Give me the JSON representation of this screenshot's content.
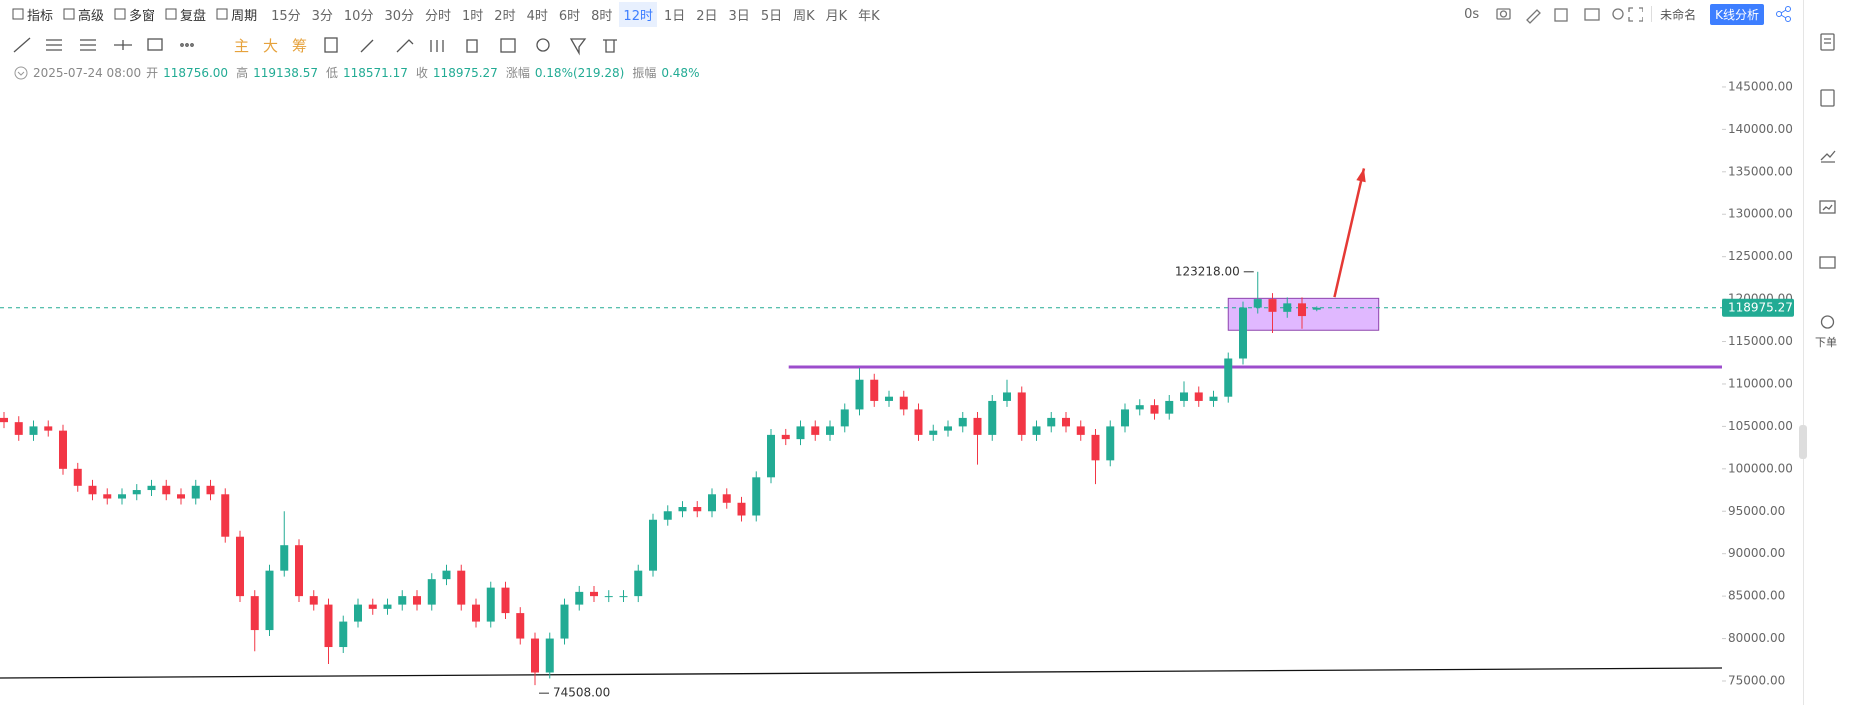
{
  "toolbar": {
    "left": [
      "指标",
      "高级",
      "多窗",
      "复盘",
      "周期"
    ],
    "periods": [
      "15分",
      "3分",
      "10分",
      "30分",
      "分时",
      "1时",
      "2时",
      "4时",
      "6时",
      "8时",
      "12时",
      "1日",
      "2日",
      "3日",
      "5日",
      "周K",
      "月K",
      "年K"
    ],
    "active_period": "12时",
    "timer": "0s",
    "layout_name": "未命名",
    "analysis": "K线分析"
  },
  "drawing_tools": [
    "主",
    "大",
    "筹"
  ],
  "info": {
    "date": "2025-07-24 08:00",
    "items": [
      {
        "label": "开",
        "value": "118756.00"
      },
      {
        "label": "高",
        "value": "119138.57"
      },
      {
        "label": "低",
        "value": "118571.17"
      },
      {
        "label": "收",
        "value": "118975.27"
      },
      {
        "label": "涨幅",
        "value": "0.18%(219.28)"
      },
      {
        "label": "振幅",
        "value": "0.48%"
      }
    ]
  },
  "sidebar": {
    "order": "下单"
  },
  "chart_data": {
    "type": "candlestick",
    "up_color": "#22ab94",
    "down_color": "#f23645",
    "ylim": [
      72170,
      149000
    ],
    "yticks": [
      {
        "value": 75000,
        "label": "75000.00"
      },
      {
        "value": 80000,
        "label": "80000.00"
      },
      {
        "value": 85000,
        "label": "85000.00"
      },
      {
        "value": 90000,
        "label": "90000.00"
      },
      {
        "value": 95000,
        "label": "95000.00"
      },
      {
        "value": 100000,
        "label": "100000.00"
      },
      {
        "value": 105000,
        "label": "105000.00"
      },
      {
        "value": 110000,
        "label": "110000.00"
      },
      {
        "value": 115000,
        "label": "115000.00"
      },
      {
        "value": 120000,
        "label": "120000.00"
      },
      {
        "value": 125000,
        "label": "125000.00"
      },
      {
        "value": 130000,
        "label": "130000.00"
      },
      {
        "value": 135000,
        "label": "135000.00"
      },
      {
        "value": 140000,
        "label": "140000.00"
      },
      {
        "value": 145000,
        "label": "145000.00"
      }
    ],
    "series": {
      "open": [
        106000,
        105500,
        104000,
        105000,
        104500,
        100000,
        98000,
        97000,
        96500,
        97000,
        97500,
        98000,
        97000,
        96500,
        98000,
        97000,
        92000,
        85000,
        81000,
        88000,
        91000,
        85000,
        84000,
        79000,
        82000,
        84000,
        83500,
        84000,
        85000,
        84000,
        87000,
        88000,
        84000,
        82000,
        86000,
        83000,
        80000,
        76000,
        80000,
        84000,
        85500,
        85000,
        85000,
        85000,
        88000,
        94000,
        95000,
        95500,
        95000,
        97000,
        96000,
        94500,
        99000,
        104000,
        103500,
        105000,
        104000,
        105000,
        107000,
        110500,
        108000,
        108500,
        107000,
        104000,
        104500,
        105000,
        106000,
        104000,
        108000,
        109000,
        104000,
        105000,
        106000,
        105000,
        104000,
        101000,
        105000,
        107000,
        107500,
        106500,
        108000,
        109000,
        108000,
        108500,
        113000,
        119000,
        120000,
        118500,
        119500,
        118756
      ],
      "high": [
        106700,
        106200,
        105700,
        105700,
        105200,
        100700,
        98700,
        97700,
        97700,
        98200,
        98700,
        98700,
        97700,
        98700,
        98700,
        97700,
        92700,
        85700,
        88700,
        95000,
        91700,
        85700,
        84700,
        82700,
        84700,
        84700,
        84700,
        85700,
        85700,
        87700,
        88700,
        88700,
        84700,
        86700,
        86700,
        83700,
        80700,
        80700,
        84700,
        86200,
        86200,
        85700,
        85700,
        88700,
        94700,
        95700,
        96200,
        96200,
        97700,
        97700,
        96700,
        99700,
        104700,
        104700,
        105700,
        105700,
        105700,
        107700,
        111900,
        111200,
        109200,
        109200,
        107700,
        105200,
        105700,
        106700,
        106700,
        108700,
        110500,
        109700,
        105700,
        106700,
        106700,
        105700,
        104700,
        105700,
        107700,
        108200,
        108200,
        108700,
        110300,
        109700,
        109200,
        113700,
        119700,
        123218,
        120700,
        120200,
        120200,
        119138.57
      ],
      "low": [
        104800,
        103300,
        103300,
        103800,
        99300,
        97300,
        96300,
        95800,
        95800,
        96300,
        96800,
        96300,
        95800,
        95800,
        96300,
        91300,
        84300,
        78500,
        80300,
        87300,
        84300,
        83300,
        77000,
        78300,
        81300,
        82800,
        82800,
        83300,
        83300,
        83300,
        86300,
        83300,
        81300,
        81300,
        82300,
        79300,
        74508,
        75300,
        79300,
        83300,
        84300,
        84300,
        84300,
        84300,
        87300,
        93300,
        94300,
        94300,
        94300,
        95300,
        93800,
        93800,
        98300,
        102800,
        102800,
        103300,
        103300,
        104300,
        106300,
        107300,
        107300,
        106300,
        103300,
        103300,
        103800,
        104300,
        100500,
        103300,
        107300,
        103300,
        103300,
        104300,
        104300,
        103300,
        98200,
        100300,
        104300,
        106300,
        105800,
        105800,
        107300,
        107300,
        107300,
        107800,
        112300,
        118300,
        116000,
        117800,
        116500,
        118571.17
      ],
      "close": [
        105500,
        104000,
        105000,
        104500,
        100000,
        98000,
        97000,
        96500,
        97000,
        97500,
        98000,
        97000,
        96500,
        98000,
        97000,
        92000,
        85000,
        81000,
        88000,
        91000,
        85000,
        84000,
        79000,
        82000,
        84000,
        83500,
        84000,
        85000,
        84000,
        87000,
        88000,
        84000,
        82000,
        86000,
        83000,
        80000,
        76000,
        80000,
        84000,
        85500,
        85000,
        85000,
        85000,
        88000,
        94000,
        95000,
        95500,
        95000,
        97000,
        96000,
        94500,
        99000,
        104000,
        103500,
        105000,
        104000,
        105000,
        107000,
        110500,
        108000,
        108500,
        107000,
        104000,
        104500,
        105000,
        106000,
        104000,
        108000,
        109000,
        104000,
        105000,
        106000,
        105000,
        104000,
        101000,
        105000,
        107000,
        107500,
        106500,
        108000,
        109000,
        108000,
        108500,
        113000,
        119000,
        120000,
        118500,
        119500,
        118000,
        118975.27
      ]
    },
    "last_price_label": "118975.27",
    "high_label": "123218.00",
    "low_label": "74508.00",
    "drawings": {
      "hline": {
        "price": 112000,
        "x": 53.2,
        "color": "#9c4dcc"
      },
      "trendline": {
        "x": [
          -0.3,
          116.5
        ],
        "price": [
          75353,
          76532
        ],
        "color": "#111111"
      },
      "box": {
        "x": [
          83,
          93.2
        ],
        "price": [
          116330,
          120090
        ],
        "color": "#c77dff"
      },
      "arrow": {
        "x": [
          90.2,
          92.2
        ],
        "price": [
          120230,
          135400
        ],
        "color": "#e53935"
      }
    }
  }
}
